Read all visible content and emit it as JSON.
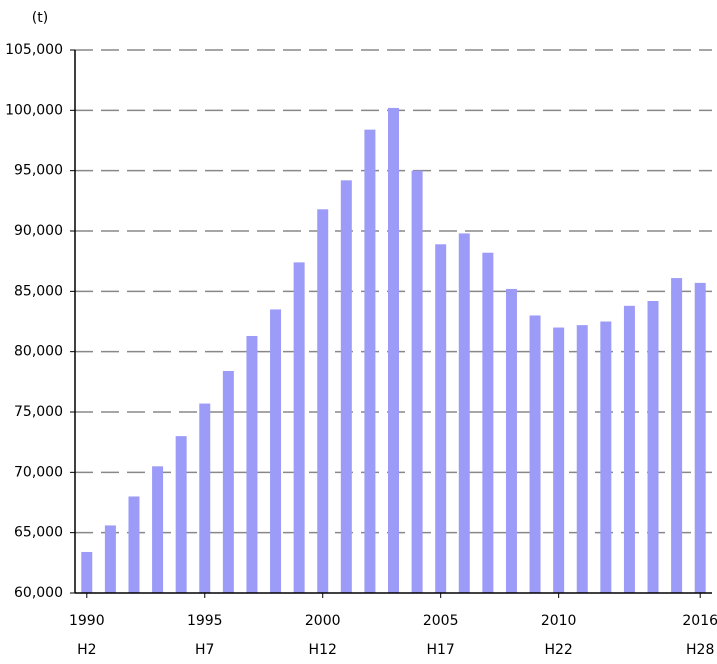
{
  "chart_data": {
    "type": "bar",
    "unit_label": "(t)",
    "categories": [
      "1990",
      null,
      null,
      null,
      null,
      "1995",
      null,
      null,
      null,
      null,
      "2000",
      null,
      null,
      null,
      null,
      "2005",
      null,
      null,
      null,
      null,
      "2010",
      null,
      null,
      null,
      null,
      null,
      "2016"
    ],
    "era_labels": [
      "H2",
      null,
      null,
      null,
      null,
      "H7",
      null,
      null,
      null,
      null,
      "H12",
      null,
      null,
      null,
      null,
      "H17",
      null,
      null,
      null,
      null,
      "H22",
      null,
      null,
      null,
      null,
      null,
      "H28"
    ],
    "values": [
      63400,
      65600,
      68000,
      70500,
      73000,
      75700,
      78400,
      81300,
      83500,
      87400,
      91800,
      94200,
      98400,
      100200,
      95000,
      88900,
      89800,
      88200,
      85200,
      83000,
      82000,
      82200,
      82500,
      83800,
      84200,
      86100,
      85700
    ],
    "color": "#9c9cf8",
    "ylim": [
      60000,
      105000
    ],
    "yticks": [
      {
        "value": 60000,
        "label": "60,000"
      },
      {
        "value": 65000,
        "label": "65,000"
      },
      {
        "value": 70000,
        "label": "70,000"
      },
      {
        "value": 75000,
        "label": "75,000"
      },
      {
        "value": 80000,
        "label": "80,000"
      },
      {
        "value": 85000,
        "label": "85,000"
      },
      {
        "value": 90000,
        "label": "90,000"
      },
      {
        "value": 95000,
        "label": "95,000"
      },
      {
        "value": 100000,
        "label": "100,000"
      },
      {
        "value": 105000,
        "label": "105,000"
      }
    ],
    "grid": true
  }
}
